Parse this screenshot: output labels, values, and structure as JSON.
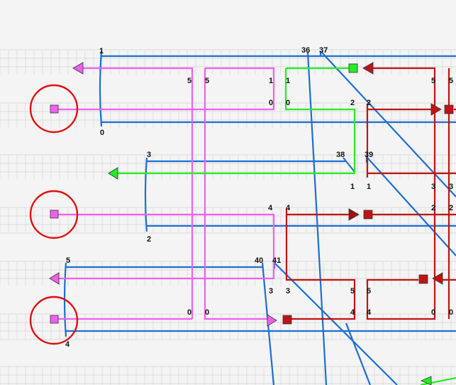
{
  "colors": {
    "background": "#f4f4f4",
    "grid": "#d6d6d6",
    "blue": "#1c6fd1",
    "magenta": "#f060f0",
    "green": "#22ee22",
    "red": "#d01010",
    "dark_red": "#b01010",
    "circle": "#e01010"
  },
  "icons": {
    "port_marker": "square",
    "port_ring": "circle",
    "arrow_head": "triangle"
  },
  "labels": {
    "l1": "1",
    "l0": "0",
    "l36": "36",
    "l37": "37",
    "l5a": "5",
    "l5b": "5",
    "l1a": "1",
    "l1b": "1",
    "l0a": "0",
    "l0b": "0",
    "l2a": "2",
    "l2b": "2",
    "l5c": "5",
    "l5d": "5",
    "l3": "3",
    "l38": "38",
    "l39": "39",
    "l1c": "1",
    "l1d": "1",
    "l3b": "3",
    "l3c": "3",
    "l4a": "4",
    "l4b": "4",
    "l2c": "2",
    "l2d": "2",
    "l2e": "2",
    "l5e": "5",
    "l40": "40",
    "l41": "41",
    "l3d": "3",
    "l3e": "3",
    "l5f": "5",
    "l5g": "5",
    "l0c": "0",
    "l0d": "0",
    "l4c": "4",
    "l4d": "4",
    "l0e": "0",
    "l0f": "0",
    "l4e": "4"
  }
}
